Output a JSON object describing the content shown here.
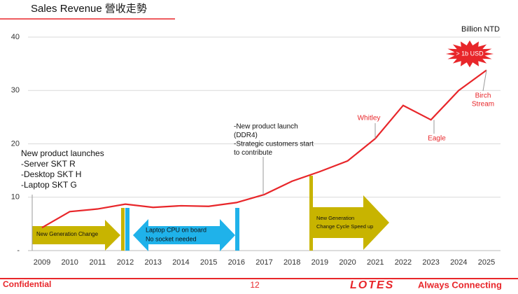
{
  "header": {
    "title": "Sales Revenue 營收走勢"
  },
  "chart_data": {
    "type": "line",
    "y_unit": "Billion NTD",
    "categories": [
      "2009",
      "2010",
      "2011",
      "2012",
      "2013",
      "2014",
      "2015",
      "2016",
      "2017",
      "2018",
      "2019",
      "2020",
      "2021",
      "2022",
      "2023",
      "2024",
      "2025"
    ],
    "series": [
      {
        "name": "Sales Revenue",
        "color": "#e8262a",
        "values": [
          4.3,
          7.3,
          7.8,
          8.7,
          8.1,
          8.4,
          8.3,
          9.0,
          10.5,
          13.0,
          14.8,
          16.8,
          21.0,
          27.2,
          24.5,
          30.0,
          33.8
        ]
      }
    ],
    "ylim": [
      0,
      40
    ],
    "yticks": [
      {
        "value": 0,
        "label": "-"
      },
      10,
      20,
      30,
      40
    ],
    "grid": true,
    "annotations": [
      {
        "lines": [
          "New product launches",
          "-Server SKT R",
          "-Desktop SKT H",
          "-Laptop SKT G"
        ]
      },
      {
        "lines": [
          "-New product launch",
          "(DDR4)",
          "-Strategic customers start",
          "to contribute"
        ]
      },
      {
        "lines": [
          "Whitley"
        ]
      },
      {
        "lines": [
          "Eagle"
        ]
      },
      {
        "lines": [
          "Birch",
          "Stream"
        ]
      },
      {
        "lines": [
          "> 1b USD"
        ]
      },
      {
        "lines": [
          "New Generation Change"
        ]
      },
      {
        "lines": [
          "Laptop CPU on board",
          "No socket needed"
        ]
      },
      {
        "lines": [
          "New Generation",
          "Change Cycle Speed up"
        ]
      }
    ]
  },
  "footer": {
    "left": "Confidential",
    "page": "12",
    "logo": "LOTES",
    "tagline": "Always Connecting"
  }
}
